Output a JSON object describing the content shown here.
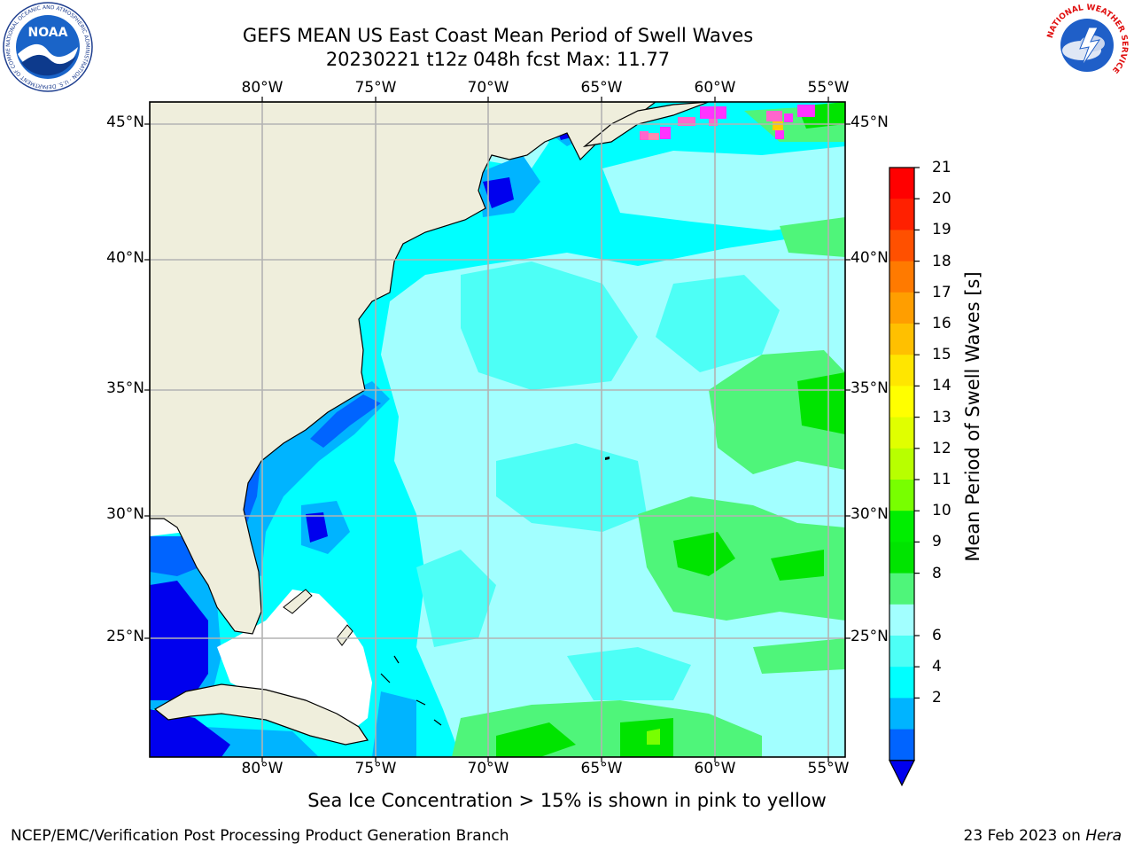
{
  "title_line1": "GEFS MEAN US East Coast Mean Period of Swell Waves",
  "title_line2": "20230221 t12z 048h fcst   Max: 11.77",
  "lon_labels": [
    "80°W",
    "75°W",
    "70°W",
    "65°W",
    "60°W",
    "55°W"
  ],
  "lat_labels": [
    "45°N",
    "40°N",
    "35°N",
    "30°N",
    "25°N"
  ],
  "colorbar": {
    "label": "Mean Period of Swell Waves [s]",
    "ticks": [
      "21",
      "20",
      "19",
      "18",
      "17",
      "16",
      "15",
      "14",
      "13",
      "12",
      "11",
      "10",
      "9",
      "8",
      "6",
      "4",
      "2"
    ],
    "colors": [
      "#ff0000",
      "#ff2000",
      "#ff5000",
      "#ff7a00",
      "#ff9e00",
      "#ffc000",
      "#ffe600",
      "#ffff00",
      "#e0ff00",
      "#b8ff00",
      "#78ff00",
      "#00ee00",
      "#00e400",
      "#4ff57a",
      "#a2ffff",
      "#4dfff6",
      "#00ffff",
      "#00b4ff",
      "#0064ff"
    ],
    "extend_color": "#0000ee"
  },
  "footnote": "Sea Ice Concentration > 15% is shown in pink to yellow",
  "credit": "NCEP/EMC/Verification Post Processing Product Generation Branch",
  "date_text": "23 Feb 2023 on ",
  "date_machine": "Hera",
  "logos": {
    "noaa": "NOAA",
    "nws": "NATIONAL WEATHER SERVICE",
    "noaa_ring": "NATIONAL OCEANIC AND ATMOSPHERIC ADMINISTRATION · U.S. DEPARTMENT OF COMMERCE"
  },
  "colors": {
    "land": "#efeedc",
    "ocean_base": "#00ffff",
    "grid": "#b3b3b3"
  }
}
